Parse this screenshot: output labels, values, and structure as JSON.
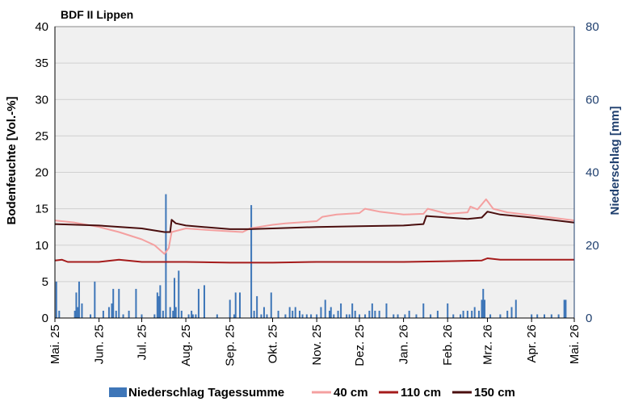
{
  "chart_data": {
    "type": "line",
    "title": "BDF II Lippen",
    "ylabel": "Bodenfeuchte [Vol.-%]",
    "y2label": "Niederschlag [mm]",
    "ylim": [
      0,
      40
    ],
    "yticks": [
      "0",
      "5",
      "10",
      "15",
      "20",
      "25",
      "30",
      "35",
      "40"
    ],
    "y2lim": [
      0,
      80
    ],
    "y2ticks": [
      "0",
      "20",
      "40",
      "60",
      "80"
    ],
    "grid": true,
    "legend_position": "bottom",
    "x_dates": [
      "2025-05-01",
      "2025-06-01",
      "2025-07-01",
      "2025-08-01",
      "2025-09-01",
      "2025-10-01",
      "2025-11-01",
      "2025-12-01",
      "2026-01-01",
      "2026-02-01",
      "2026-03-01",
      "2026-04-01",
      "2026-05-01"
    ],
    "x_labels": [
      "Mai. 25",
      "Jun. 25",
      "Jul. 25",
      "Aug. 25",
      "Sep. 25",
      "Okt. 25",
      "Nov. 25",
      "Dez. 25",
      "Jan. 26",
      "Feb. 26",
      "Mrz. 26",
      "Apr. 26",
      "Mai. 26"
    ],
    "series": [
      {
        "name": "40 cm",
        "color": "#f4a0a0",
        "axis": "left",
        "points": [
          [
            "2025-05-01",
            13.4
          ],
          [
            "2025-05-15",
            13.1
          ],
          [
            "2025-06-01",
            12.5
          ],
          [
            "2025-06-15",
            11.8
          ],
          [
            "2025-07-01",
            10.8
          ],
          [
            "2025-07-10",
            10.0
          ],
          [
            "2025-07-17",
            8.8
          ],
          [
            "2025-07-20",
            9.6
          ],
          [
            "2025-07-22",
            11.8
          ],
          [
            "2025-08-01",
            12.3
          ],
          [
            "2025-08-15",
            12.1
          ],
          [
            "2025-09-01",
            11.9
          ],
          [
            "2025-09-10",
            11.8
          ],
          [
            "2025-09-15",
            12.3
          ],
          [
            "2025-10-01",
            12.8
          ],
          [
            "2025-10-10",
            13.0
          ],
          [
            "2025-11-01",
            13.3
          ],
          [
            "2025-11-05",
            13.9
          ],
          [
            "2025-11-15",
            14.2
          ],
          [
            "2025-12-01",
            14.4
          ],
          [
            "2025-12-05",
            15.0
          ],
          [
            "2025-12-15",
            14.6
          ],
          [
            "2026-01-01",
            14.2
          ],
          [
            "2026-01-15",
            14.3
          ],
          [
            "2026-01-18",
            15.0
          ],
          [
            "2026-02-01",
            14.3
          ],
          [
            "2026-02-15",
            14.5
          ],
          [
            "2026-02-17",
            15.3
          ],
          [
            "2026-02-22",
            14.9
          ],
          [
            "2026-02-28",
            16.3
          ],
          [
            "2026-03-05",
            15.0
          ],
          [
            "2026-03-15",
            14.5
          ],
          [
            "2026-04-01",
            14.1
          ],
          [
            "2026-04-15",
            13.8
          ],
          [
            "2026-05-01",
            13.4
          ]
        ]
      },
      {
        "name": "110 cm",
        "color": "#a51b1b",
        "axis": "left",
        "points": [
          [
            "2025-05-01",
            7.9
          ],
          [
            "2025-05-06",
            8.0
          ],
          [
            "2025-05-10",
            7.7
          ],
          [
            "2025-06-01",
            7.7
          ],
          [
            "2025-06-15",
            8.0
          ],
          [
            "2025-07-01",
            7.7
          ],
          [
            "2025-08-01",
            7.7
          ],
          [
            "2025-09-01",
            7.6
          ],
          [
            "2025-10-01",
            7.6
          ],
          [
            "2025-11-01",
            7.7
          ],
          [
            "2025-12-01",
            7.7
          ],
          [
            "2026-01-01",
            7.7
          ],
          [
            "2026-02-01",
            7.8
          ],
          [
            "2026-02-25",
            7.9
          ],
          [
            "2026-03-01",
            8.2
          ],
          [
            "2026-03-10",
            8.0
          ],
          [
            "2026-04-01",
            8.0
          ],
          [
            "2026-05-01",
            8.0
          ]
        ]
      },
      {
        "name": "150 cm",
        "color": "#4a0e0e",
        "axis": "left",
        "points": [
          [
            "2025-05-01",
            12.9
          ],
          [
            "2025-06-01",
            12.7
          ],
          [
            "2025-07-01",
            12.3
          ],
          [
            "2025-07-17",
            11.8
          ],
          [
            "2025-07-21",
            11.8
          ],
          [
            "2025-07-22",
            13.5
          ],
          [
            "2025-07-25",
            13.0
          ],
          [
            "2025-08-01",
            12.7
          ],
          [
            "2025-09-01",
            12.2
          ],
          [
            "2025-09-15",
            12.2
          ],
          [
            "2025-10-01",
            12.3
          ],
          [
            "2025-11-01",
            12.5
          ],
          [
            "2025-12-01",
            12.6
          ],
          [
            "2026-01-01",
            12.7
          ],
          [
            "2026-01-15",
            12.9
          ],
          [
            "2026-01-17",
            14.0
          ],
          [
            "2026-02-01",
            13.8
          ],
          [
            "2026-02-15",
            13.6
          ],
          [
            "2026-02-25",
            13.8
          ],
          [
            "2026-03-01",
            14.6
          ],
          [
            "2026-03-10",
            14.2
          ],
          [
            "2026-04-01",
            13.8
          ],
          [
            "2026-05-01",
            13.1
          ]
        ]
      }
    ],
    "bars": {
      "name": "Niederschlag Tagessumme",
      "color": "#3e76b8",
      "axis": "right",
      "points": [
        [
          "2025-05-02",
          10
        ],
        [
          "2025-05-04",
          2
        ],
        [
          "2025-05-15",
          2
        ],
        [
          "2025-05-16",
          7
        ],
        [
          "2025-05-17",
          3
        ],
        [
          "2025-05-18",
          10
        ],
        [
          "2025-05-20",
          4
        ],
        [
          "2025-05-26",
          1
        ],
        [
          "2025-05-29",
          10
        ],
        [
          "2025-06-04",
          2
        ],
        [
          "2025-06-08",
          3
        ],
        [
          "2025-06-10",
          4
        ],
        [
          "2025-06-11",
          8
        ],
        [
          "2025-06-13",
          2
        ],
        [
          "2025-06-15",
          8
        ],
        [
          "2025-06-18",
          1
        ],
        [
          "2025-06-22",
          2
        ],
        [
          "2025-06-27",
          8
        ],
        [
          "2025-07-01",
          1
        ],
        [
          "2025-07-10",
          1
        ],
        [
          "2025-07-12",
          7
        ],
        [
          "2025-07-13",
          6
        ],
        [
          "2025-07-14",
          9
        ],
        [
          "2025-07-16",
          2
        ],
        [
          "2025-07-18",
          34
        ],
        [
          "2025-07-21",
          3
        ],
        [
          "2025-07-23",
          2
        ],
        [
          "2025-07-24",
          11
        ],
        [
          "2025-07-25",
          3
        ],
        [
          "2025-07-27",
          13
        ],
        [
          "2025-07-29",
          2
        ],
        [
          "2025-08-03",
          1
        ],
        [
          "2025-08-05",
          2
        ],
        [
          "2025-08-06",
          1
        ],
        [
          "2025-08-08",
          1
        ],
        [
          "2025-08-10",
          8
        ],
        [
          "2025-08-14",
          9
        ],
        [
          "2025-08-23",
          1
        ],
        [
          "2025-09-01",
          5
        ],
        [
          "2025-09-04",
          1
        ],
        [
          "2025-09-05",
          7
        ],
        [
          "2025-09-08",
          7
        ],
        [
          "2025-09-16",
          31
        ],
        [
          "2025-09-18",
          2
        ],
        [
          "2025-09-20",
          6
        ],
        [
          "2025-09-23",
          1
        ],
        [
          "2025-09-25",
          3
        ],
        [
          "2025-09-27",
          1
        ],
        [
          "2025-09-30",
          7
        ],
        [
          "2025-10-05",
          2
        ],
        [
          "2025-10-10",
          1
        ],
        [
          "2025-10-13",
          3
        ],
        [
          "2025-10-15",
          2
        ],
        [
          "2025-10-17",
          3
        ],
        [
          "2025-10-20",
          2
        ],
        [
          "2025-10-22",
          1
        ],
        [
          "2025-10-25",
          1
        ],
        [
          "2025-10-28",
          1
        ],
        [
          "2025-11-01",
          1
        ],
        [
          "2025-11-04",
          3
        ],
        [
          "2025-11-07",
          5
        ],
        [
          "2025-11-10",
          2
        ],
        [
          "2025-11-11",
          3
        ],
        [
          "2025-11-13",
          1
        ],
        [
          "2025-11-16",
          2
        ],
        [
          "2025-11-18",
          4
        ],
        [
          "2025-11-22",
          1
        ],
        [
          "2025-11-24",
          1
        ],
        [
          "2025-11-26",
          4
        ],
        [
          "2025-11-28",
          2
        ],
        [
          "2025-12-01",
          1
        ],
        [
          "2025-12-05",
          1
        ],
        [
          "2025-12-08",
          2
        ],
        [
          "2025-12-10",
          4
        ],
        [
          "2025-12-12",
          2
        ],
        [
          "2025-12-15",
          2
        ],
        [
          "2025-12-20",
          4
        ],
        [
          "2025-12-25",
          1
        ],
        [
          "2025-12-28",
          1
        ],
        [
          "2026-01-02",
          1
        ],
        [
          "2026-01-05",
          2
        ],
        [
          "2026-01-10",
          1
        ],
        [
          "2026-01-15",
          4
        ],
        [
          "2026-01-20",
          1
        ],
        [
          "2026-01-25",
          2
        ],
        [
          "2026-02-01",
          4
        ],
        [
          "2026-02-05",
          1
        ],
        [
          "2026-02-10",
          1
        ],
        [
          "2026-02-12",
          2
        ],
        [
          "2026-02-15",
          2
        ],
        [
          "2026-02-18",
          2
        ],
        [
          "2026-02-20",
          3
        ],
        [
          "2026-02-23",
          2
        ],
        [
          "2026-02-25",
          5
        ],
        [
          "2026-02-26",
          8
        ],
        [
          "2026-02-27",
          5
        ],
        [
          "2026-03-03",
          1
        ],
        [
          "2026-03-10",
          1
        ],
        [
          "2026-03-15",
          2
        ],
        [
          "2026-03-18",
          3
        ],
        [
          "2026-03-21",
          5
        ],
        [
          "2026-04-01",
          1
        ],
        [
          "2026-04-05",
          1
        ],
        [
          "2026-04-10",
          1
        ],
        [
          "2026-04-15",
          1
        ],
        [
          "2026-04-20",
          1
        ],
        [
          "2026-04-24",
          5
        ],
        [
          "2026-04-25",
          5
        ]
      ]
    }
  }
}
